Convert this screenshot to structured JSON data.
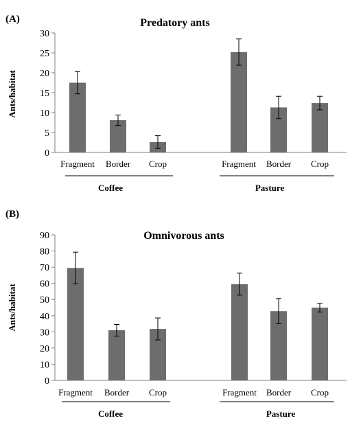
{
  "chart_data": [
    {
      "type": "bar",
      "panel_label": "(A)",
      "title": "Predatory ants",
      "ylabel": "Ants/habitat",
      "ylim": [
        0,
        30
      ],
      "yticks": [
        0,
        5,
        10,
        15,
        20,
        25,
        30
      ],
      "groups": [
        {
          "name": "Coffee",
          "categories": [
            "Fragment",
            "Border",
            "Crop"
          ],
          "values": [
            17.5,
            8.1,
            2.6
          ],
          "errors": [
            2.8,
            1.3,
            1.6
          ]
        },
        {
          "name": "Pasture",
          "categories": [
            "Fragment",
            "Border",
            "Crop"
          ],
          "values": [
            25.2,
            11.3,
            12.4
          ],
          "errors": [
            3.3,
            2.8,
            1.7
          ]
        }
      ],
      "bar_color": "#6d6d6d",
      "grid": false,
      "legend": false
    },
    {
      "type": "bar",
      "panel_label": "(B)",
      "title": "Omnivorous ants",
      "ylabel": "Ants/habitat",
      "ylim": [
        0,
        90
      ],
      "yticks": [
        0,
        10,
        20,
        30,
        40,
        50,
        60,
        70,
        80,
        90
      ],
      "groups": [
        {
          "name": "Coffee",
          "categories": [
            "Fragment",
            "Border",
            "Crop"
          ],
          "values": [
            69.5,
            31,
            31.8
          ],
          "errors": [
            9.8,
            3.6,
            6.8
          ]
        },
        {
          "name": "Pasture",
          "categories": [
            "Fragment",
            "Border",
            "Crop"
          ],
          "values": [
            59.5,
            42.8,
            45
          ],
          "errors": [
            6.8,
            7.8,
            2.7
          ]
        }
      ],
      "bar_color": "#6d6d6d",
      "grid": false,
      "legend": false
    }
  ]
}
